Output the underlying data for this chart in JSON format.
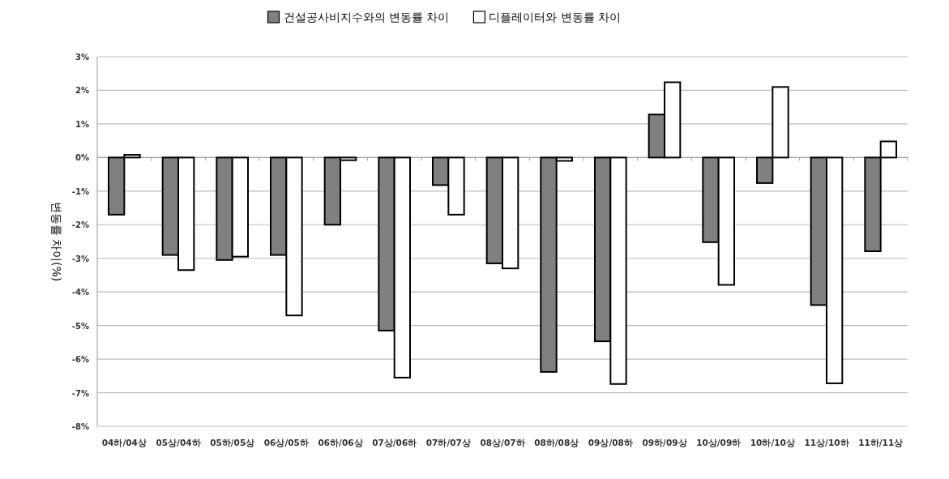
{
  "chart_data": {
    "type": "bar",
    "ylabel": "변동률 차이(%)",
    "categories": [
      "04하/04상",
      "05상/04하",
      "05하/05상",
      "06상/05하",
      "06하/06상",
      "07상/06하",
      "07하/07상",
      "08상/07하",
      "08하/08상",
      "09상/08하",
      "09하/09상",
      "10상/09하",
      "10하/10상",
      "11상/10하",
      "11하/11상"
    ],
    "series": [
      {
        "name": "건설공사비지수와의 변동률 차이",
        "color": "#808080",
        "values": [
          -1.7,
          -2.9,
          -3.05,
          -2.9,
          -2.0,
          -5.15,
          -0.82,
          -3.15,
          -6.38,
          -5.47,
          1.28,
          -2.52,
          -0.76,
          -4.39,
          -2.79
        ]
      },
      {
        "name": "디플레이터와 변동률 차이",
        "color": "#ffffff",
        "values": [
          0.08,
          -3.35,
          -2.95,
          -4.7,
          -0.08,
          -6.55,
          -1.7,
          -3.3,
          -0.1,
          -6.74,
          2.24,
          -3.79,
          2.1,
          -6.72,
          0.48
        ]
      }
    ],
    "ylim": [
      -8,
      3
    ],
    "yticks": [
      {
        "value": 3,
        "label": "3%"
      },
      {
        "value": 2,
        "label": "2%"
      },
      {
        "value": 1,
        "label": "1%"
      },
      {
        "value": 0,
        "label": "0%"
      },
      {
        "value": -1,
        "label": "-1%"
      },
      {
        "value": -2,
        "label": "-2%"
      },
      {
        "value": -3,
        "label": "-3%"
      },
      {
        "value": -4,
        "label": "-4%"
      },
      {
        "value": -5,
        "label": "-5%"
      },
      {
        "value": -6,
        "label": "-6%"
      },
      {
        "value": -7,
        "label": "-7%"
      },
      {
        "value": -8,
        "label": "-8%"
      }
    ],
    "grid": "y",
    "legend": "top"
  }
}
